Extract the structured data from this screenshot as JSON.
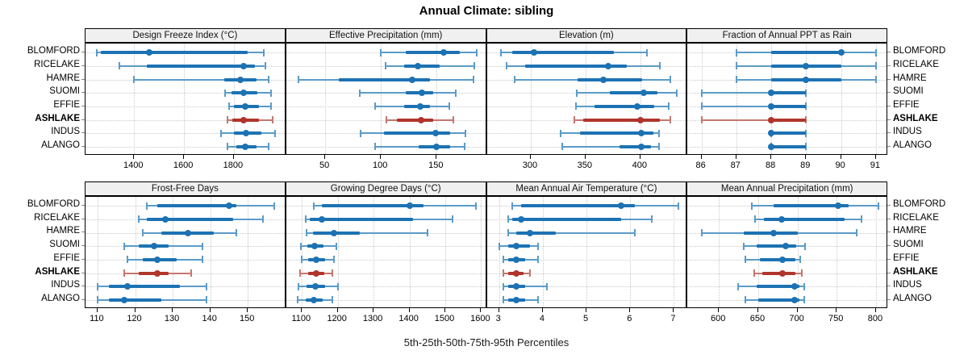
{
  "chart_data": {
    "type": "interval",
    "title": "Annual Climate: sibling",
    "xlabel": "5th-25th-50th-75th-95th Percentiles",
    "percentiles": [
      5,
      25,
      50,
      75,
      95
    ],
    "stations": [
      "BLOMFORD",
      "RICELAKE",
      "HAMRE",
      "SUOMI",
      "EFFIE",
      "ASHLAKE",
      "INDUS",
      "ALANGO"
    ],
    "highlight_station": "ASHLAKE",
    "colors": {
      "series_blue": "#1c72b3",
      "series_blue_light": "#5b9bc8",
      "highlight_red": "#b0352c",
      "highlight_red_light": "#c4776f",
      "strip_bg": "#f0f0f0",
      "grid": "#c9c9c9",
      "panel_border": "#000000"
    },
    "panels": [
      {
        "title": "Design Freeze Index (°C)",
        "row": 0,
        "col": 0,
        "xlim": [
          1205,
          2010
        ],
        "ticks": [
          1400,
          1600,
          1800
        ],
        "values": [
          [
            1250,
            1265,
            1460,
            1855,
            1920
          ],
          [
            1340,
            1450,
            1840,
            1885,
            1925
          ],
          [
            1400,
            1760,
            1825,
            1890,
            1940
          ],
          [
            1765,
            1790,
            1840,
            1895,
            1950
          ],
          [
            1780,
            1800,
            1845,
            1900,
            1950
          ],
          [
            1775,
            1795,
            1840,
            1900,
            1955
          ],
          [
            1750,
            1800,
            1850,
            1910,
            1965
          ],
          [
            1775,
            1810,
            1845,
            1890,
            1940
          ]
        ]
      },
      {
        "title": "Effective Precipitation (mm)",
        "row": 0,
        "col": 1,
        "xlim": [
          15,
          195
        ],
        "ticks": [
          50,
          100,
          150
        ],
        "values": [
          [
            100,
            122,
            156,
            171,
            186
          ],
          [
            104,
            121,
            133,
            153,
            184
          ],
          [
            26,
            62,
            128,
            144,
            183
          ],
          [
            81,
            122,
            137,
            147,
            167
          ],
          [
            95,
            121,
            135,
            144,
            161
          ],
          [
            105,
            114,
            136,
            147,
            165
          ],
          [
            82,
            103,
            149,
            162,
            176
          ],
          [
            95,
            134,
            150,
            162,
            175
          ]
        ]
      },
      {
        "title": "Elevation (m)",
        "row": 0,
        "col": 2,
        "xlim": [
          260,
          443
        ],
        "ticks": [
          300,
          350,
          400
        ],
        "values": [
          [
            273,
            283,
            303,
            376,
            406
          ],
          [
            278,
            295,
            371,
            388,
            418
          ],
          [
            285,
            343,
            366,
            402,
            427
          ],
          [
            342,
            372,
            403,
            416,
            433
          ],
          [
            341,
            358,
            397,
            413,
            426
          ],
          [
            340,
            348,
            400,
            418,
            427
          ],
          [
            327,
            345,
            401,
            412,
            417
          ],
          [
            329,
            381,
            401,
            410,
            417
          ]
        ]
      },
      {
        "title": "Fraction of Annual PPT as Rain",
        "row": 0,
        "col": 3,
        "xlim": [
          85.6,
          91.35
        ],
        "ticks": [
          86,
          87,
          88,
          89,
          90,
          91
        ],
        "values": [
          [
            87,
            88,
            90,
            90,
            91
          ],
          [
            87,
            88,
            89,
            90,
            91
          ],
          [
            87,
            88,
            89,
            90,
            91
          ],
          [
            86,
            88,
            88,
            89,
            89
          ],
          [
            86,
            88,
            88,
            89,
            89
          ],
          [
            86,
            88,
            88,
            89,
            89
          ],
          [
            88,
            88,
            88,
            89,
            89
          ],
          [
            88,
            88,
            88,
            89,
            89
          ]
        ]
      },
      {
        "title": "Frost-Free Days",
        "row": 1,
        "col": 0,
        "xlim": [
          106.8,
          160.2
        ],
        "ticks": [
          110,
          120,
          130,
          140,
          150
        ],
        "values": [
          [
            123,
            126,
            145,
            147,
            157
          ],
          [
            121,
            123,
            128,
            146,
            154
          ],
          [
            122,
            127,
            134,
            141,
            147
          ],
          [
            117,
            121,
            125,
            129,
            138
          ],
          [
            118,
            122,
            126,
            131,
            138
          ],
          [
            117,
            121,
            126,
            129,
            135
          ],
          [
            110,
            113,
            118,
            132,
            139
          ],
          [
            110,
            113,
            117,
            127,
            139
          ]
        ]
      },
      {
        "title": "Growing Degree Days (°C)",
        "row": 1,
        "col": 1,
        "xlim": [
          1056,
          1616
        ],
        "ticks": [
          1100,
          1200,
          1300,
          1400,
          1500,
          1600
        ],
        "values": [
          [
            1134,
            1155,
            1400,
            1440,
            1585
          ],
          [
            1110,
            1122,
            1155,
            1410,
            1520
          ],
          [
            1112,
            1130,
            1190,
            1262,
            1450
          ],
          [
            1098,
            1115,
            1136,
            1160,
            1197
          ],
          [
            1100,
            1118,
            1140,
            1165,
            1190
          ],
          [
            1095,
            1118,
            1140,
            1162,
            1186
          ],
          [
            1090,
            1112,
            1138,
            1165,
            1200
          ],
          [
            1088,
            1110,
            1132,
            1158,
            1185
          ]
        ]
      },
      {
        "title": "Mean Annual Air Temperature (°C)",
        "row": 1,
        "col": 2,
        "xlim": [
          2.72,
          7.31
        ],
        "ticks": [
          3,
          4,
          5,
          6,
          7
        ],
        "values": [
          [
            3.3,
            3.5,
            5.8,
            6.1,
            7.1
          ],
          [
            3.2,
            3.3,
            3.5,
            5.8,
            6.5
          ],
          [
            3.2,
            3.4,
            3.7,
            4.3,
            6.1
          ],
          [
            3.0,
            3.2,
            3.4,
            3.7,
            3.9
          ],
          [
            3.1,
            3.2,
            3.4,
            3.6,
            3.9
          ],
          [
            3.1,
            3.2,
            3.4,
            3.55,
            3.7
          ],
          [
            3.1,
            3.2,
            3.4,
            3.6,
            4.1
          ],
          [
            3.1,
            3.2,
            3.4,
            3.6,
            3.9
          ]
        ]
      },
      {
        "title": "Mean Annual Precipitation (mm)",
        "row": 1,
        "col": 3,
        "xlim": [
          560,
          815.5
        ],
        "ticks": [
          600,
          650,
          700,
          750,
          800
        ],
        "values": [
          [
            642,
            670,
            752,
            765,
            803
          ],
          [
            646,
            657,
            680,
            760,
            782
          ],
          [
            578,
            632,
            670,
            700,
            775
          ],
          [
            632,
            648,
            685,
            698,
            710
          ],
          [
            634,
            652,
            681,
            697,
            704
          ],
          [
            645,
            655,
            681,
            697,
            706
          ],
          [
            624,
            648,
            696,
            703,
            709
          ],
          [
            634,
            650,
            696,
            703,
            709
          ]
        ]
      }
    ]
  }
}
